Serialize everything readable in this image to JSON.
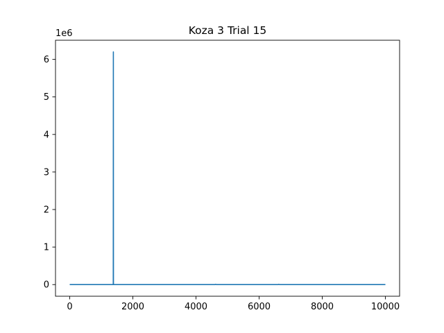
{
  "chart_data": {
    "type": "line",
    "title": "Koza 3 Trial 15",
    "xlabel": "",
    "ylabel": "",
    "y_offset_label": "1e6",
    "xlim": [
      -450,
      10450
    ],
    "ylim": [
      -310000,
      6510000
    ],
    "x_ticks": [
      0,
      2000,
      4000,
      6000,
      8000,
      10000
    ],
    "x_tick_labels": [
      "0",
      "2000",
      "4000",
      "6000",
      "8000",
      "10000"
    ],
    "y_ticks": [
      0,
      1000000,
      2000000,
      3000000,
      4000000,
      5000000,
      6000000
    ],
    "y_tick_labels": [
      "0",
      "1",
      "2",
      "3",
      "4",
      "5",
      "6"
    ],
    "grid": false,
    "series": [
      {
        "color": "#1f77b4",
        "x": [
          0,
          250,
          1000,
          1380,
          1383,
          1386,
          1400,
          2500,
          4600,
          4620,
          4650,
          6000,
          6600,
          6620,
          6650,
          7100,
          8000,
          9000,
          10000
        ],
        "y": [
          0,
          0,
          0,
          0,
          6200000,
          0,
          0,
          0,
          0,
          8000,
          0,
          0,
          0,
          8000,
          0,
          0,
          0,
          0,
          0
        ]
      }
    ]
  }
}
